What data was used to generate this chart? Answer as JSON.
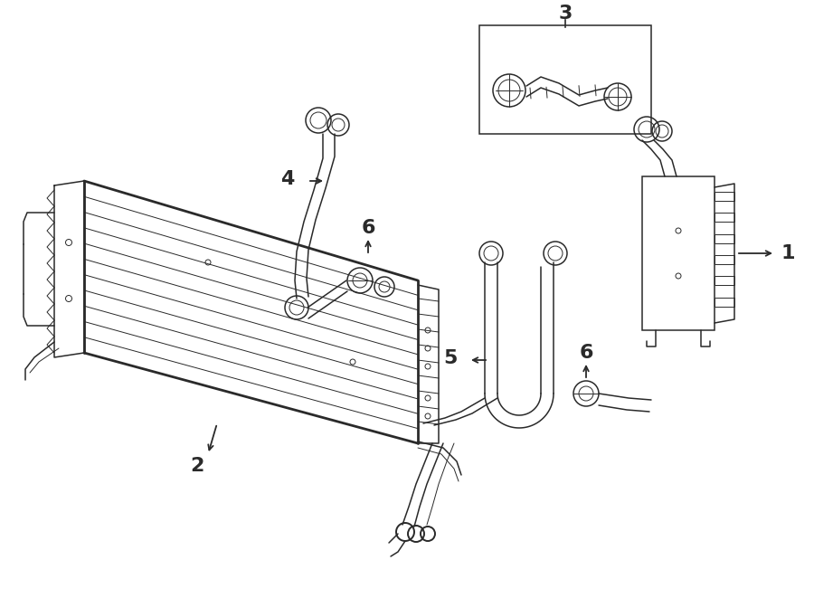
{
  "bg_color": "#ffffff",
  "line_color": "#2a2a2a",
  "lw_main": 1.4,
  "lw_thin": 0.7,
  "lw_thick": 2.0,
  "lw_med": 1.1,
  "label_fontsize": 16
}
